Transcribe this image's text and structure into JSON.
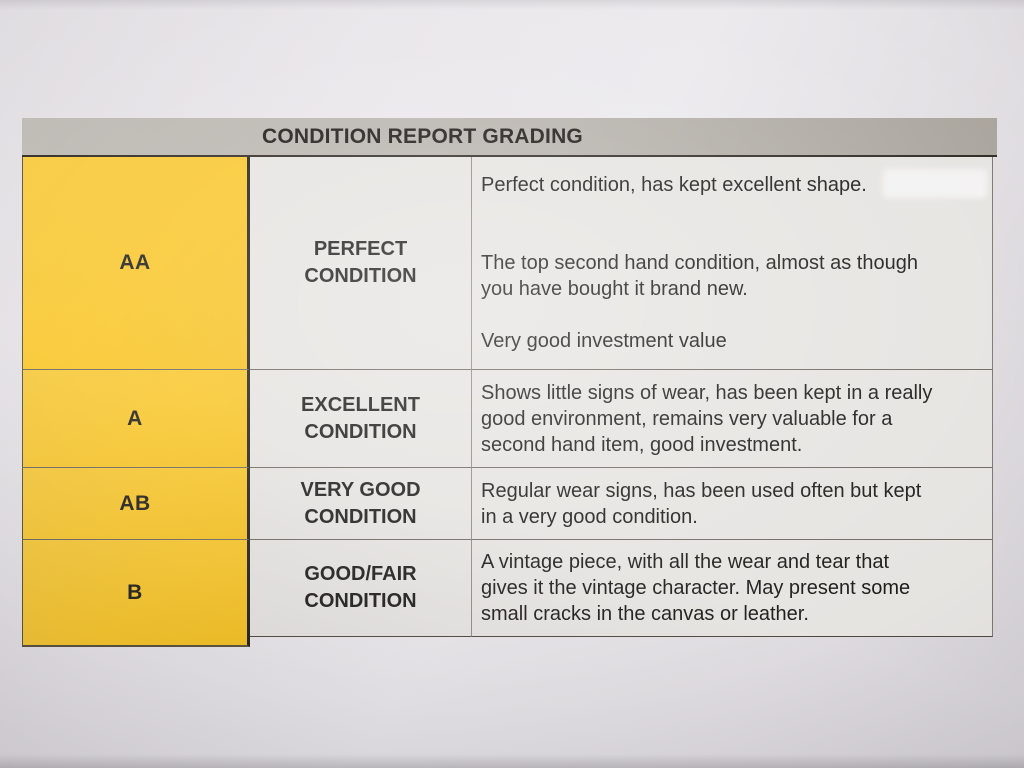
{
  "table": {
    "title": "CONDITION REPORT GRADING",
    "rows": [
      {
        "grade": "AA",
        "condition": "PERFECT CONDITION",
        "description": "Perfect condition, has kept excellent shape.\n\n\nThe top second hand condition, almost as though\nyou have bought it brand new.\n\nVery good investment value"
      },
      {
        "grade": "A",
        "condition": "EXCELLENT CONDITION",
        "description": "Shows little signs of wear, has been kept in a really\ngood environment, remains very valuable for a\nsecond hand item, good investment."
      },
      {
        "grade": "AB",
        "condition": "VERY GOOD CONDITION",
        "description": "Regular wear signs, has been used often but kept\nin a very good condition."
      },
      {
        "grade": "B",
        "condition": "GOOD/FAIR CONDITION",
        "description": "A vintage piece, with all the wear and tear that\ngives it the vintage character. May present some\nsmall cracks in the canvas or leather."
      }
    ]
  },
  "colors": {
    "grade_column_yellow": "#f9c72c",
    "header_gray": "#b6b1ab",
    "cell_background": "#e6e4e1",
    "paper_background": "#e9e6ea",
    "text": "#1e1c19"
  }
}
